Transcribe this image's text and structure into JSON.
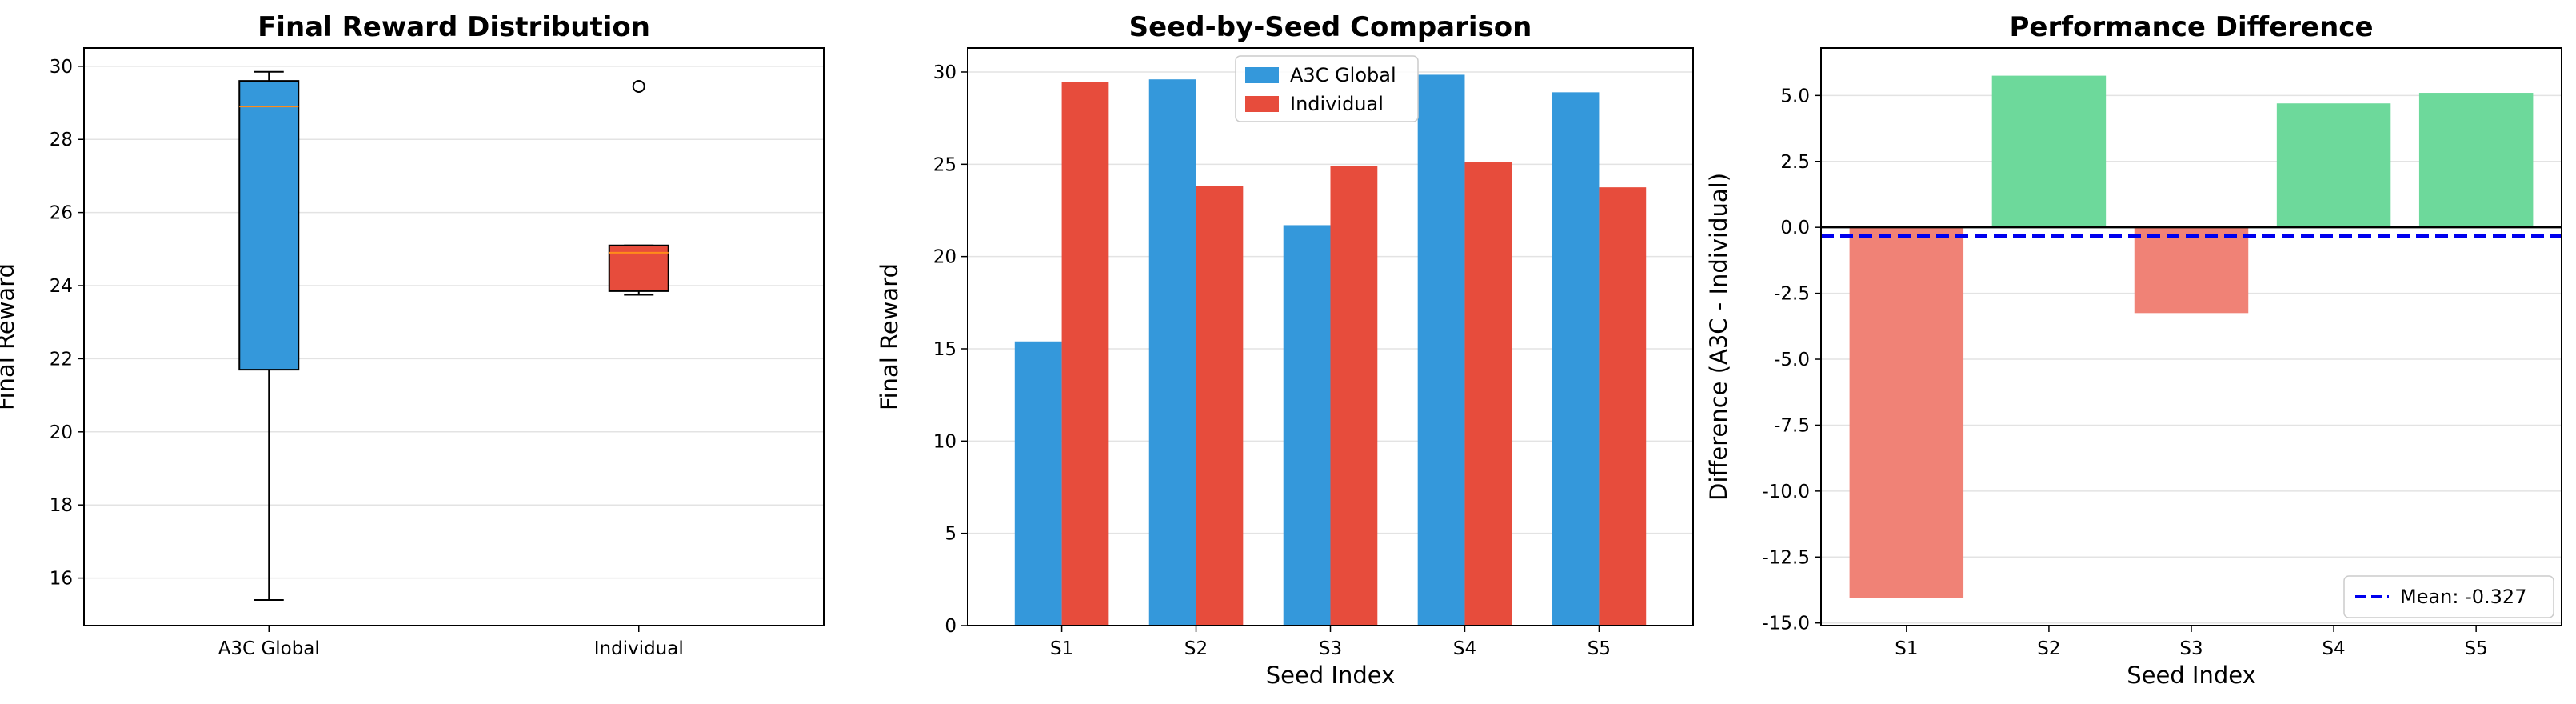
{
  "chart_data": [
    {
      "type": "box",
      "title": "Final Reward Distribution",
      "xlabel": "",
      "ylabel": "Final Reward",
      "categories": [
        "A3C Global",
        "Individual"
      ],
      "ylim": [
        14.7,
        30.5
      ],
      "yticks": [
        16,
        18,
        20,
        22,
        24,
        26,
        28,
        30
      ],
      "grid": "y",
      "boxes": [
        {
          "name": "A3C Global",
          "color": "#3498db",
          "whisker_low": 15.4,
          "q1": 21.7,
          "median": 28.9,
          "q3": 29.6,
          "whisker_high": 29.85,
          "outliers": []
        },
        {
          "name": "Individual",
          "color": "#e74c3c",
          "whisker_low": 23.75,
          "q1": 23.85,
          "median": 24.9,
          "q3": 25.1,
          "whisker_high": 25.1,
          "outliers": [
            29.45
          ]
        }
      ],
      "median_color": "#ff8c1a"
    },
    {
      "type": "bar",
      "title": "Seed-by-Seed Comparison",
      "xlabel": "Seed Index",
      "ylabel": "Final Reward",
      "categories": [
        "S1",
        "S2",
        "S3",
        "S4",
        "S5"
      ],
      "ylim": [
        0,
        31.3
      ],
      "yticks": [
        0,
        5,
        10,
        15,
        20,
        25,
        30
      ],
      "grid": "y",
      "legend": "top-center",
      "series": [
        {
          "name": "A3C Global",
          "color": "#3498db",
          "values": [
            15.4,
            29.6,
            21.7,
            29.85,
            28.9
          ]
        },
        {
          "name": "Individual",
          "color": "#e74c3c",
          "values": [
            29.45,
            23.8,
            24.9,
            25.1,
            23.75
          ]
        }
      ]
    },
    {
      "type": "bar",
      "title": "Performance Difference",
      "xlabel": "Seed Index",
      "ylabel": "Difference (A3C - Individual)",
      "categories": [
        "S1",
        "S2",
        "S3",
        "S4",
        "S5"
      ],
      "ylim": [
        -15.1,
        6.8
      ],
      "yticks": [
        -15.0,
        -12.5,
        -10.0,
        -7.5,
        -5.0,
        -2.5,
        0.0,
        2.5,
        5.0
      ],
      "grid": "y",
      "values": [
        -14.05,
        5.75,
        -3.25,
        4.7,
        5.1
      ],
      "positive_color": "#6dd99b",
      "negative_color": "#f08276",
      "mean": {
        "label": "Mean: -0.327",
        "value": -0.327,
        "color": "#0000ee"
      },
      "legend": "bottom-right"
    }
  ]
}
